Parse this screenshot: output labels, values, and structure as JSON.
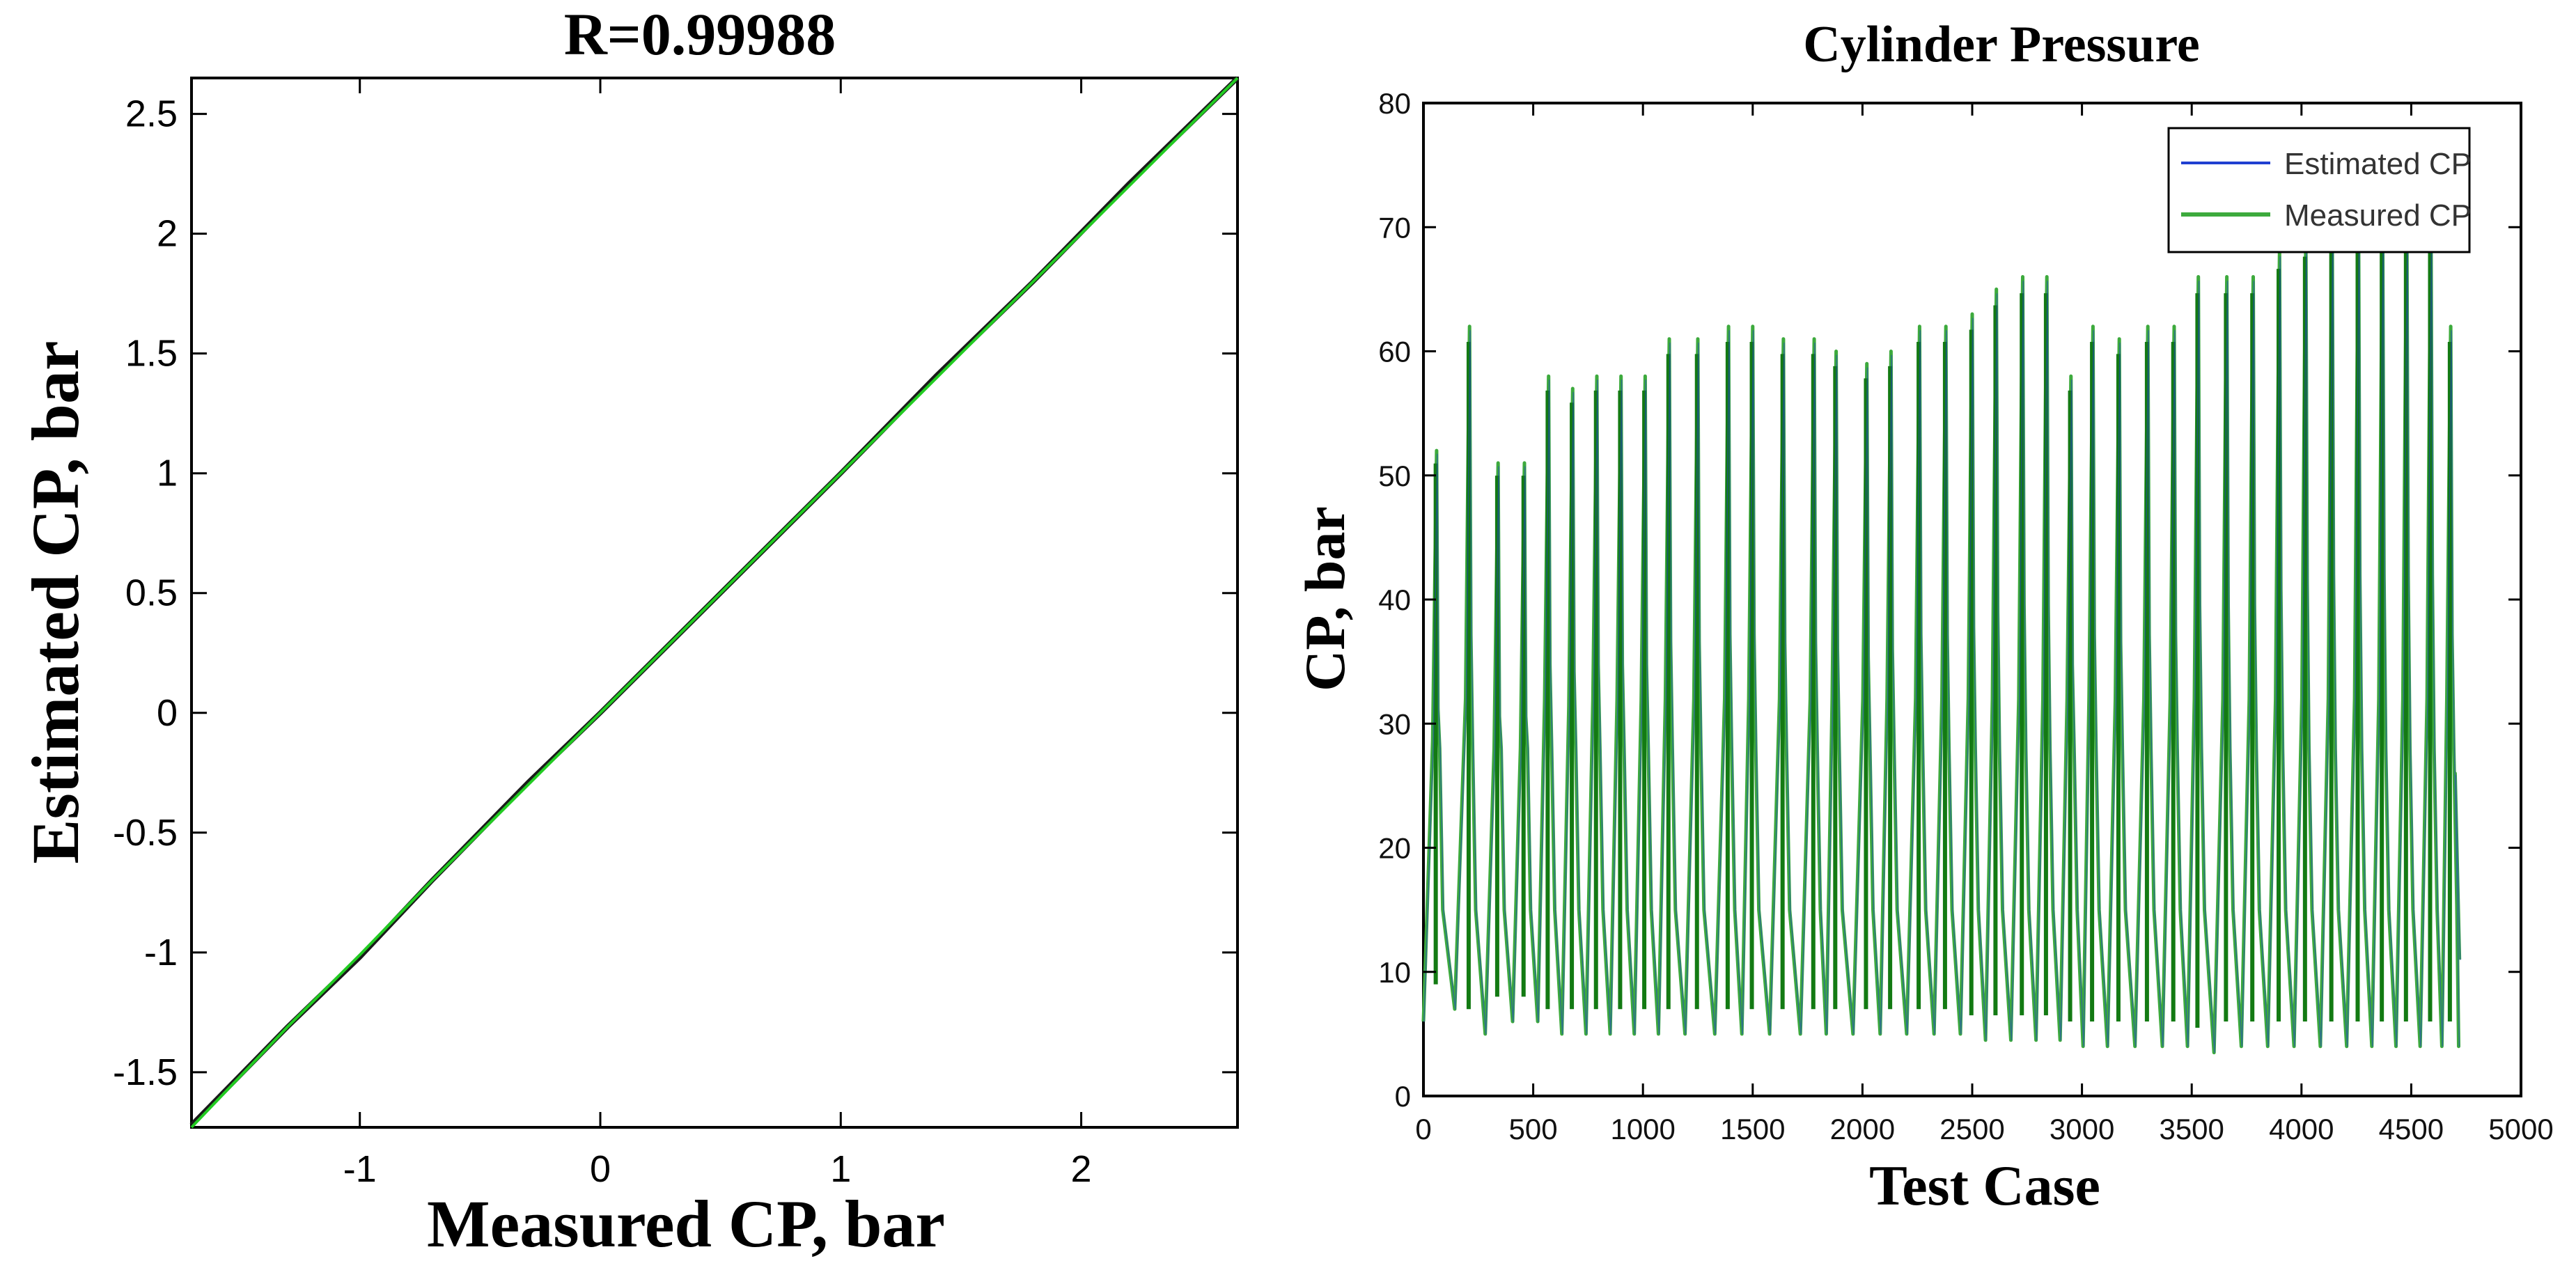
{
  "figure": {
    "panels": [
      "regression",
      "cylinder_pressure"
    ]
  },
  "chart_data": [
    {
      "id": "regression",
      "type": "line",
      "title": "R=0.99988",
      "xlabel": "Measured CP, bar",
      "ylabel": "Estimated CP, bar",
      "xlim": [
        -1.7,
        2.65
      ],
      "ylim": [
        -1.73,
        2.65
      ],
      "xticks": [
        -1,
        0,
        1,
        2
      ],
      "xtick_labels": [
        "-1",
        "0",
        "1",
        "2"
      ],
      "yticks": [
        -1.5,
        -1,
        -0.5,
        0,
        0.5,
        1,
        1.5,
        2,
        2.5
      ],
      "ytick_labels": [
        "-1.5",
        "-1",
        "-0.5",
        "0",
        "0.5",
        "1",
        "1.5",
        "2",
        "2.5"
      ],
      "grid": false,
      "series": [
        {
          "color": "#1a1a1a",
          "x": [
            -1.7,
            -1.3,
            -1.0,
            -0.7,
            -0.3,
            0.0,
            0.4,
            0.8,
            1.0,
            1.4,
            1.8,
            2.2,
            2.65
          ],
          "y": [
            -1.72,
            -1.31,
            -1.02,
            -0.7,
            -0.29,
            0.0,
            0.4,
            0.8,
            1.0,
            1.41,
            1.8,
            2.21,
            2.65
          ]
        },
        {
          "color": "#22cc22",
          "x": [
            -1.7,
            -1.3,
            -1.0,
            -0.7,
            -0.3,
            0.0,
            0.4,
            0.8,
            1.0,
            1.4,
            1.8,
            2.2,
            2.65
          ],
          "y": [
            -1.73,
            -1.31,
            -1.01,
            -0.7,
            -0.3,
            0.0,
            0.4,
            0.8,
            1.0,
            1.4,
            1.8,
            2.2,
            2.65
          ]
        }
      ]
    },
    {
      "id": "cylinder_pressure",
      "type": "line",
      "title": "Cylinder Pressure",
      "xlabel": "Test Case",
      "ylabel": "CP, bar",
      "xlim": [
        0,
        5000
      ],
      "ylim": [
        0,
        80
      ],
      "xticks": [
        0,
        500,
        1000,
        1500,
        2000,
        2500,
        3000,
        3500,
        4000,
        4500,
        5000
      ],
      "xtick_labels": [
        "0",
        "500",
        "1000",
        "1500",
        "2000",
        "2500",
        "3000",
        "3500",
        "4000",
        "4500",
        "5000"
      ],
      "yticks": [
        0,
        10,
        20,
        30,
        40,
        50,
        60,
        70,
        80
      ],
      "ytick_labels": [
        "0",
        "10",
        "20",
        "30",
        "40",
        "50",
        "60",
        "70",
        "80"
      ],
      "grid": false,
      "legend": {
        "placement": "top-right",
        "entries": [
          {
            "label": "Estimated CP",
            "color": "#1f3fd0"
          },
          {
            "label": "Measured CP",
            "color": "#3daa3d"
          }
        ]
      },
      "cycle_peaks_x": [
        60,
        210,
        340,
        460,
        570,
        680,
        790,
        900,
        1010,
        1120,
        1250,
        1390,
        1500,
        1640,
        1780,
        1880,
        2020,
        2130,
        2260,
        2380,
        2500,
        2610,
        2730,
        2840,
        2950,
        3050,
        3170,
        3300,
        3420,
        3530,
        3660,
        3780,
        3900,
        4020,
        4140,
        4260,
        4370,
        4480,
        4590,
        4680
      ],
      "cycle_peaks_y": [
        52,
        62,
        51,
        51,
        58,
        57,
        58,
        58,
        58,
        61,
        61,
        62,
        62,
        61,
        61,
        60,
        59,
        60,
        62,
        62,
        63,
        65,
        66,
        66,
        58,
        62,
        61,
        62,
        62,
        66,
        66,
        66,
        68,
        69,
        70,
        70,
        70,
        70,
        70,
        62
      ],
      "cycle_troughs_y": [
        7,
        5,
        6,
        6,
        5,
        5,
        5,
        5,
        5,
        5,
        5,
        5,
        5,
        5,
        5,
        5,
        5,
        5,
        5,
        5,
        4.5,
        4.5,
        4.5,
        4.5,
        4,
        4,
        4,
        4,
        4,
        3.5,
        4,
        4,
        4,
        4,
        4,
        4,
        4,
        4,
        4,
        4
      ],
      "series_end": {
        "x": 4720,
        "y": 11
      }
    }
  ]
}
